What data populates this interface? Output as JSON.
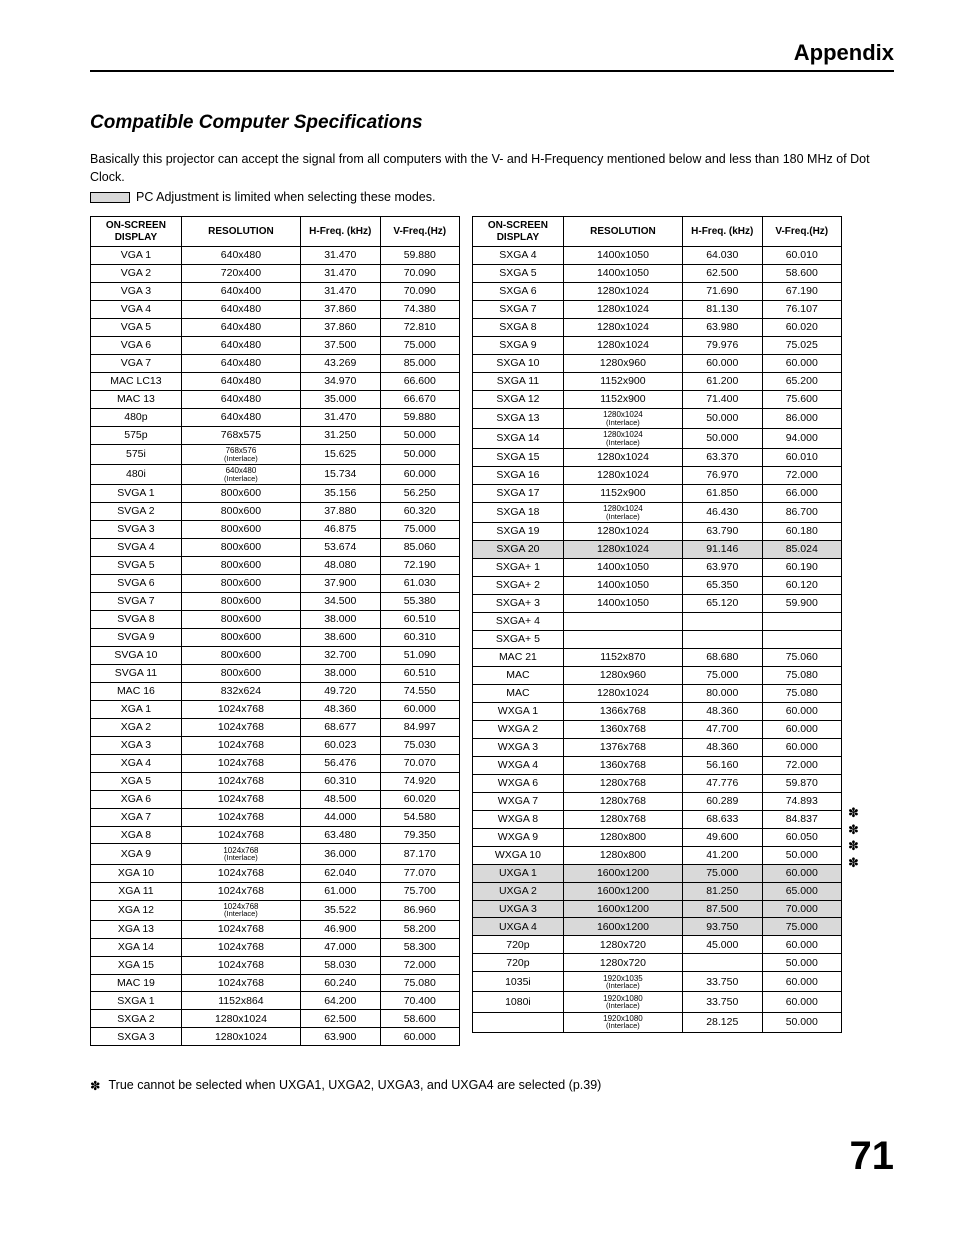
{
  "header": {
    "title": "Appendix"
  },
  "section": {
    "title": "Compatible Computer Specifications",
    "intro": "Basically this projector can accept the signal from all computers with the V- and H-Frequency mentioned below and less than 180 MHz of Dot Clock.",
    "legend": "PC Adjustment is limited when selecting these modes."
  },
  "columns": {
    "osd": "ON-SCREEN DISPLAY",
    "res": "RESOLUTION",
    "hf": "H-Freq. (kHz)",
    "vf": "V-Freq.(Hz)"
  },
  "footnote": {
    "glyph": "✽",
    "text": "True cannot be selected when UXGA1, UXGA2, UXGA3, and UXGA4 are selected (p.39)"
  },
  "pageNumber": "71",
  "leftRows": [
    {
      "d": "VGA 1",
      "r": "640x480",
      "h": "31.470",
      "v": "59.880"
    },
    {
      "d": "VGA 2",
      "r": "720x400",
      "h": "31.470",
      "v": "70.090"
    },
    {
      "d": "VGA 3",
      "r": "640x400",
      "h": "31.470",
      "v": "70.090"
    },
    {
      "d": "VGA 4",
      "r": "640x480",
      "h": "37.860",
      "v": "74.380"
    },
    {
      "d": "VGA 5",
      "r": "640x480",
      "h": "37.860",
      "v": "72.810"
    },
    {
      "d": "VGA 6",
      "r": "640x480",
      "h": "37.500",
      "v": "75.000"
    },
    {
      "d": "VGA 7",
      "r": "640x480",
      "h": "43.269",
      "v": "85.000"
    },
    {
      "d": "MAC LC13",
      "r": "640x480",
      "h": "34.970",
      "v": "66.600"
    },
    {
      "d": "MAC 13",
      "r": "640x480",
      "h": "35.000",
      "v": "66.670"
    },
    {
      "d": "480p",
      "r": "640x480",
      "h": "31.470",
      "v": "59.880"
    },
    {
      "d": "575p",
      "r": "768x575",
      "h": "31.250",
      "v": "50.000"
    },
    {
      "d": "575i",
      "r": "768x576",
      "il": true,
      "h": "15.625",
      "v": "50.000"
    },
    {
      "d": "480i",
      "r": "640x480",
      "il": true,
      "h": "15.734",
      "v": "60.000"
    },
    {
      "d": "SVGA 1",
      "r": "800x600",
      "h": "35.156",
      "v": "56.250"
    },
    {
      "d": "SVGA 2",
      "r": "800x600",
      "h": "37.880",
      "v": "60.320"
    },
    {
      "d": "SVGA 3",
      "r": "800x600",
      "h": "46.875",
      "v": "75.000"
    },
    {
      "d": "SVGA 4",
      "r": "800x600",
      "h": "53.674",
      "v": "85.060"
    },
    {
      "d": "SVGA 5",
      "r": "800x600",
      "h": "48.080",
      "v": "72.190"
    },
    {
      "d": "SVGA 6",
      "r": "800x600",
      "h": "37.900",
      "v": "61.030"
    },
    {
      "d": "SVGA 7",
      "r": "800x600",
      "h": "34.500",
      "v": "55.380"
    },
    {
      "d": "SVGA 8",
      "r": "800x600",
      "h": "38.000",
      "v": "60.510"
    },
    {
      "d": "SVGA 9",
      "r": "800x600",
      "h": "38.600",
      "v": "60.310"
    },
    {
      "d": "SVGA 10",
      "r": "800x600",
      "h": "32.700",
      "v": "51.090"
    },
    {
      "d": "SVGA 11",
      "r": "800x600",
      "h": "38.000",
      "v": "60.510"
    },
    {
      "d": "MAC 16",
      "r": "832x624",
      "h": "49.720",
      "v": "74.550"
    },
    {
      "d": "XGA 1",
      "r": "1024x768",
      "h": "48.360",
      "v": "60.000"
    },
    {
      "d": "XGA 2",
      "r": "1024x768",
      "h": "68.677",
      "v": "84.997"
    },
    {
      "d": "XGA 3",
      "r": "1024x768",
      "h": "60.023",
      "v": "75.030"
    },
    {
      "d": "XGA 4",
      "r": "1024x768",
      "h": "56.476",
      "v": "70.070"
    },
    {
      "d": "XGA 5",
      "r": "1024x768",
      "h": "60.310",
      "v": "74.920"
    },
    {
      "d": "XGA 6",
      "r": "1024x768",
      "h": "48.500",
      "v": "60.020"
    },
    {
      "d": "XGA 7",
      "r": "1024x768",
      "h": "44.000",
      "v": "54.580"
    },
    {
      "d": "XGA 8",
      "r": "1024x768",
      "h": "63.480",
      "v": "79.350"
    },
    {
      "d": "XGA 9",
      "r": "1024x768",
      "il": true,
      "h": "36.000",
      "v": "87.170"
    },
    {
      "d": "XGA 10",
      "r": "1024x768",
      "h": "62.040",
      "v": "77.070"
    },
    {
      "d": "XGA 11",
      "r": "1024x768",
      "h": "61.000",
      "v": "75.700"
    },
    {
      "d": "XGA 12",
      "r": "1024x768",
      "il": true,
      "h": "35.522",
      "v": "86.960"
    },
    {
      "d": "XGA 13",
      "r": "1024x768",
      "h": "46.900",
      "v": "58.200"
    },
    {
      "d": "XGA 14",
      "r": "1024x768",
      "h": "47.000",
      "v": "58.300"
    },
    {
      "d": "XGA 15",
      "r": "1024x768",
      "h": "58.030",
      "v": "72.000"
    },
    {
      "d": "MAC 19",
      "r": "1024x768",
      "h": "60.240",
      "v": "75.080"
    },
    {
      "d": "SXGA 1",
      "r": "1152x864",
      "h": "64.200",
      "v": "70.400"
    },
    {
      "d": "SXGA 2",
      "r": "1280x1024",
      "h": "62.500",
      "v": "58.600"
    },
    {
      "d": "SXGA 3",
      "r": "1280x1024",
      "h": "63.900",
      "v": "60.000"
    }
  ],
  "rightRows": [
    {
      "d": "SXGA 4",
      "r": "1400x1050",
      "h": "64.030",
      "v": "60.010"
    },
    {
      "d": "SXGA 5",
      "r": "1400x1050",
      "h": "62.500",
      "v": "58.600"
    },
    {
      "d": "SXGA 6",
      "r": "1280x1024",
      "h": "71.690",
      "v": "67.190"
    },
    {
      "d": "SXGA 7",
      "r": "1280x1024",
      "h": "81.130",
      "v": "76.107"
    },
    {
      "d": "SXGA 8",
      "r": "1280x1024",
      "h": "63.980",
      "v": "60.020"
    },
    {
      "d": "SXGA 9",
      "r": "1280x1024",
      "h": "79.976",
      "v": "75.025"
    },
    {
      "d": "SXGA 10",
      "r": "1280x960",
      "h": "60.000",
      "v": "60.000"
    },
    {
      "d": "SXGA 11",
      "r": "1152x900",
      "h": "61.200",
      "v": "65.200"
    },
    {
      "d": "SXGA 12",
      "r": "1152x900",
      "h": "71.400",
      "v": "75.600"
    },
    {
      "d": "SXGA 13",
      "r": "1280x1024",
      "il": true,
      "h": "50.000",
      "v": "86.000"
    },
    {
      "d": "SXGA 14",
      "r": "1280x1024",
      "il": true,
      "h": "50.000",
      "v": "94.000"
    },
    {
      "d": "SXGA 15",
      "r": "1280x1024",
      "h": "63.370",
      "v": "60.010"
    },
    {
      "d": "SXGA 16",
      "r": "1280x1024",
      "h": "76.970",
      "v": "72.000"
    },
    {
      "d": "SXGA 17",
      "r": "1152x900",
      "h": "61.850",
      "v": "66.000"
    },
    {
      "d": "SXGA 18",
      "r": "1280x1024",
      "il": true,
      "h": "46.430",
      "v": "86.700"
    },
    {
      "d": "SXGA 19",
      "r": "1280x1024",
      "h": "63.790",
      "v": "60.180"
    },
    {
      "d": "SXGA 20",
      "r": "1280x1024",
      "h": "91.146",
      "v": "85.024",
      "shade": true
    },
    {
      "d": "SXGA+ 1",
      "r": "1400x1050",
      "h": "63.970",
      "v": "60.190"
    },
    {
      "d": "SXGA+ 2",
      "r": "1400x1050",
      "h": "65.350",
      "v": "60.120"
    },
    {
      "d": "SXGA+ 3",
      "r": "1400x1050",
      "h": "65.120",
      "v": "59.900"
    },
    {
      "d": "SXGA+ 4",
      "r": "",
      "h": "",
      "v": ""
    },
    {
      "d": "SXGA+ 5",
      "r": "",
      "h": "",
      "v": ""
    },
    {
      "d": "MAC 21",
      "r": "1152x870",
      "h": "68.680",
      "v": "75.060"
    },
    {
      "d": "MAC",
      "r": "1280x960",
      "h": "75.000",
      "v": "75.080"
    },
    {
      "d": "MAC",
      "r": "1280x1024",
      "h": "80.000",
      "v": "75.080"
    },
    {
      "d": "WXGA 1",
      "r": "1366x768",
      "h": "48.360",
      "v": "60.000"
    },
    {
      "d": "WXGA 2",
      "r": "1360x768",
      "h": "47.700",
      "v": "60.000"
    },
    {
      "d": "WXGA 3",
      "r": "1376x768",
      "h": "48.360",
      "v": "60.000"
    },
    {
      "d": "WXGA 4",
      "r": "1360x768",
      "h": "56.160",
      "v": "72.000"
    },
    {
      "d": "WXGA 6",
      "r": "1280x768",
      "h": "47.776",
      "v": "59.870"
    },
    {
      "d": "WXGA 7",
      "r": "1280x768",
      "h": "60.289",
      "v": "74.893"
    },
    {
      "d": "WXGA 8",
      "r": "1280x768",
      "h": "68.633",
      "v": "84.837"
    },
    {
      "d": "WXGA 9",
      "r": "1280x800",
      "h": "49.600",
      "v": "60.050"
    },
    {
      "d": "WXGA 10",
      "r": "1280x800",
      "h": "41.200",
      "v": "50.000"
    },
    {
      "d": "UXGA 1",
      "r": "1600x1200",
      "h": "75.000",
      "v": "60.000",
      "shade": true,
      "aster": true
    },
    {
      "d": "UXGA 2",
      "r": "1600x1200",
      "h": "81.250",
      "v": "65.000",
      "shade": true,
      "aster": true
    },
    {
      "d": "UXGA 3",
      "r": "1600x1200",
      "h": "87.500",
      "v": "70.000",
      "shade": true,
      "aster": true
    },
    {
      "d": "UXGA 4",
      "r": "1600x1200",
      "h": "93.750",
      "v": "75.000",
      "shade": true,
      "aster": true
    },
    {
      "d": "720p",
      "r": "1280x720",
      "h": "45.000",
      "v": "60.000"
    },
    {
      "d": "720p",
      "r": "1280x720",
      "h": "",
      "v": "50.000"
    },
    {
      "d": "1035i",
      "r": "1920x1035",
      "il": true,
      "h": "33.750",
      "v": "60.000"
    },
    {
      "d": "1080i",
      "r": "1920x1080",
      "il": true,
      "h": "33.750",
      "v": "60.000"
    },
    {
      "d": "",
      "r": "1920x1080",
      "il": true,
      "h": "28.125",
      "v": "50.000"
    }
  ]
}
